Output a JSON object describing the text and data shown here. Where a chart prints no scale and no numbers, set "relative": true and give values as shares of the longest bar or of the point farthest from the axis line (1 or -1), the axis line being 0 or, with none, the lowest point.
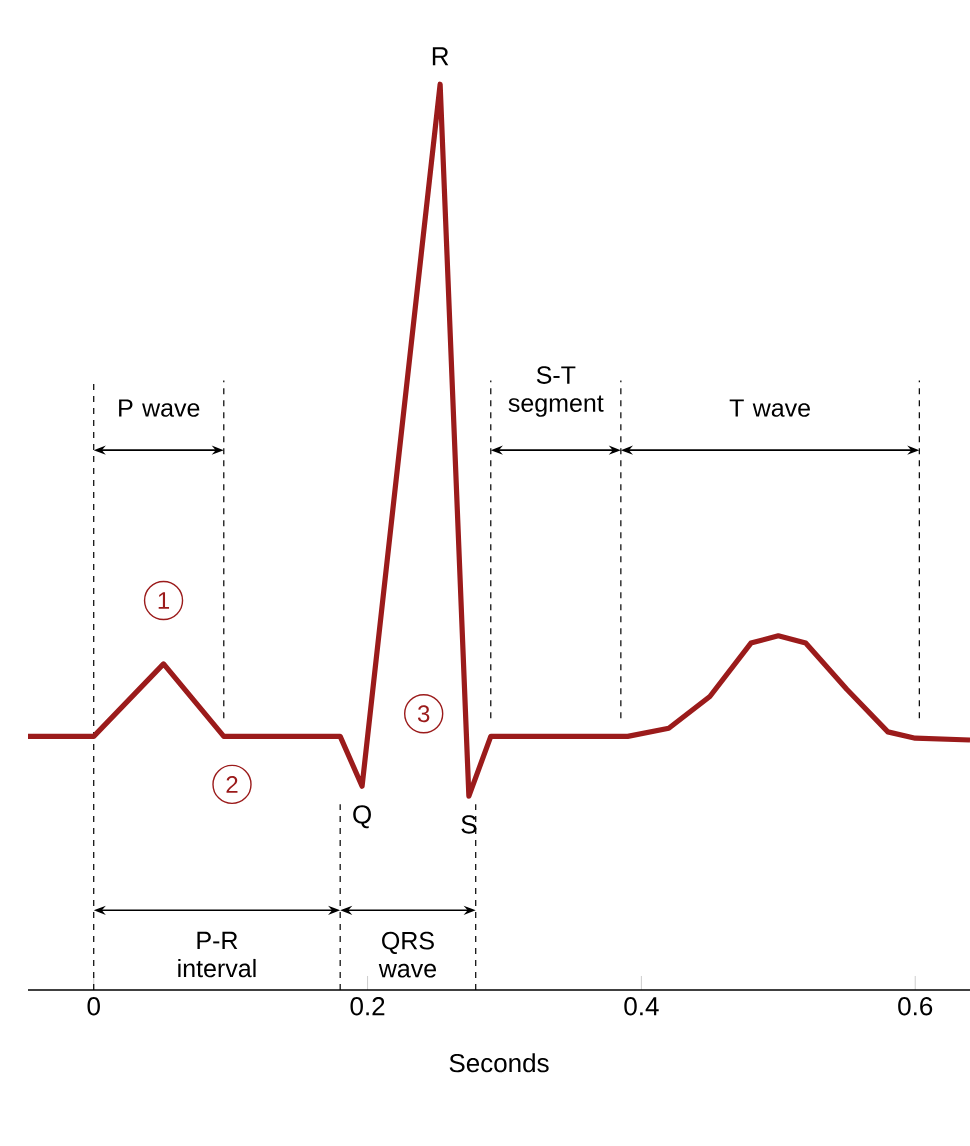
{
  "chart_data": {
    "type": "line",
    "relative": true,
    "color": "#9b1b1b",
    "xlabel": "Seconds",
    "xlim": [
      -0.048,
      0.64
    ],
    "xticks": [
      0,
      0.2,
      0.4,
      0.6
    ],
    "x": [
      -0.048,
      0.0,
      0.051,
      0.095,
      0.18,
      0.196,
      0.253,
      0.274,
      0.29,
      0.39,
      0.42,
      0.45,
      0.48,
      0.5,
      0.52,
      0.55,
      0.58,
      0.6,
      0.64
    ],
    "values": [
      0.28,
      0.28,
      0.36,
      0.28,
      0.28,
      0.225,
      1.0,
      0.214,
      0.28,
      0.28,
      0.289,
      0.324,
      0.383,
      0.391,
      0.383,
      0.332,
      0.285,
      0.278,
      0.276
    ],
    "annotations": [
      {
        "text": "1",
        "x": 0.051,
        "y": 0.43
      },
      {
        "text": "2",
        "x": 0.101,
        "y": 0.227
      },
      {
        "text": "3",
        "x": 0.241,
        "y": 0.305
      },
      {
        "text": "R",
        "x": 0.253,
        "y": 1.0
      },
      {
        "text": "Q",
        "x": 0.196,
        "y": 0.225
      },
      {
        "text": "S",
        "x": 0.274,
        "y": 0.214
      },
      "P wave",
      "S-T segment",
      "T wave",
      "P-R interval",
      "QRS wave"
    ],
    "ref_lines": [
      {
        "axis": "x",
        "value": 0.0,
        "line_style": "dashed"
      },
      {
        "axis": "x",
        "value": 0.095,
        "line_style": "dashed"
      },
      {
        "axis": "x",
        "value": 0.18,
        "line_style": "dashed"
      },
      {
        "axis": "x",
        "value": 0.279,
        "line_style": "dashed"
      },
      {
        "axis": "x",
        "value": 0.29,
        "line_style": "dashed"
      },
      {
        "axis": "x",
        "value": 0.385,
        "line_style": "dashed"
      },
      {
        "axis": "x",
        "value": 0.603,
        "line_style": "dashed"
      }
    ]
  }
}
